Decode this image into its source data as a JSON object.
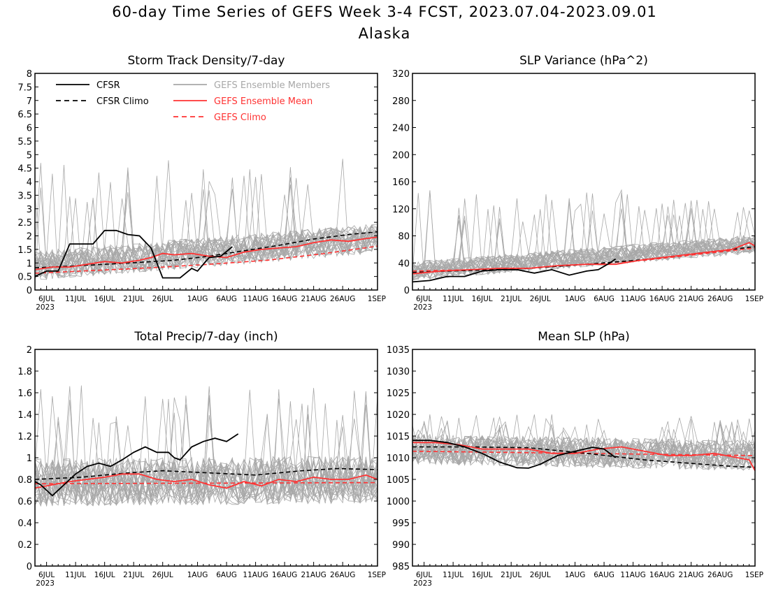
{
  "title": "60-day Time Series of GEFS Week 3-4 FCST, 2023.07.04-2023.09.01",
  "subtitle": "Alaska",
  "colors": {
    "cfsr": "#000000",
    "members": "#a8a8a8",
    "ens_mean": "#ff3333",
    "gefs_climo": "#ff3333"
  },
  "x_axis": {
    "tick_labels": [
      "6JUL",
      "11JUL",
      "16JUL",
      "21JUL",
      "26JUL",
      "1AUG",
      "6AUG",
      "11AUG",
      "16AUG",
      "21AUG",
      "26AUG",
      "1SEP"
    ],
    "tick_days": [
      2,
      7,
      12,
      17,
      22,
      28,
      33,
      38,
      43,
      48,
      53,
      59
    ],
    "year_label": "2023",
    "range_days": [
      0,
      59
    ]
  },
  "legend": {
    "placement": "top-left of first panel",
    "entries": [
      {
        "label": "CFSR",
        "color": "#000000",
        "style": "solid"
      },
      {
        "label": "CFSR Climo",
        "color": "#000000",
        "style": "dashed"
      },
      {
        "label": "GEFS Ensemble Members",
        "color": "#a8a8a8",
        "style": "solid"
      },
      {
        "label": "GEFS Ensemble Mean",
        "color": "#ff3333",
        "style": "solid"
      },
      {
        "label": "GEFS Climo",
        "color": "#ff3333",
        "style": "dashed"
      }
    ]
  },
  "chart_data": [
    {
      "type": "line",
      "title": "Storm Track Density/7-day",
      "ylim": [
        0,
        8
      ],
      "yticks": [
        0,
        0.5,
        1,
        1.5,
        2,
        2.5,
        3,
        3.5,
        4,
        4.5,
        5,
        5.5,
        6,
        6.5,
        7,
        7.5,
        8
      ],
      "ytick_labels": [
        "0",
        "0.5",
        "1",
        "1.5",
        "2",
        "2.5",
        "3",
        "3.5",
        "4",
        "4.5",
        "5",
        "5.5",
        "6",
        "6.5",
        "7",
        "7.5",
        "8"
      ],
      "series": [
        {
          "name": "CFSR",
          "x": [
            0,
            2,
            4,
            6,
            8,
            10,
            12,
            14,
            16,
            18,
            20,
            22,
            23,
            25,
            27,
            28,
            30,
            32,
            34
          ],
          "values": [
            0.5,
            0.7,
            0.7,
            1.7,
            1.7,
            1.7,
            2.2,
            2.2,
            2.05,
            2.0,
            1.55,
            0.45,
            0.45,
            0.45,
            0.8,
            0.7,
            1.2,
            1.25,
            1.6
          ]
        },
        {
          "name": "CFSR Climo",
          "x": [
            0,
            6,
            12,
            18,
            24,
            30,
            36,
            42,
            48,
            54,
            59
          ],
          "values": [
            0.82,
            0.88,
            0.95,
            1.02,
            1.1,
            1.25,
            1.45,
            1.65,
            1.88,
            2.05,
            2.15
          ]
        },
        {
          "name": "GEFS Ensemble Mean",
          "x": [
            0,
            3,
            6,
            9,
            12,
            15,
            18,
            20,
            22,
            24,
            27,
            30,
            33,
            36,
            39,
            42,
            45,
            48,
            51,
            54,
            57,
            59
          ],
          "values": [
            0.75,
            0.85,
            0.85,
            0.95,
            1.05,
            1.0,
            1.1,
            1.2,
            1.35,
            1.3,
            1.35,
            1.25,
            1.2,
            1.4,
            1.5,
            1.55,
            1.6,
            1.75,
            1.85,
            1.8,
            1.9,
            1.95
          ]
        },
        {
          "name": "GEFS Climo",
          "x": [
            0,
            10,
            20,
            30,
            40,
            50,
            59
          ],
          "values": [
            0.62,
            0.72,
            0.82,
            0.95,
            1.1,
            1.35,
            1.62
          ]
        }
      ],
      "members": {
        "count": 30,
        "center_start": 0.9,
        "center_end": 1.9,
        "spread": 0.55,
        "spike_max": 4.9
      }
    },
    {
      "type": "line",
      "title": "SLP Variance (hPa^2)",
      "ylim": [
        0,
        320
      ],
      "yticks": [
        0,
        40,
        80,
        120,
        160,
        200,
        240,
        280,
        320
      ],
      "ytick_labels": [
        "0",
        "40",
        "80",
        "120",
        "160",
        "200",
        "240",
        "280",
        "320"
      ],
      "series": [
        {
          "name": "CFSR",
          "x": [
            0,
            3,
            6,
            9,
            12,
            15,
            18,
            21,
            24,
            27,
            30,
            32,
            34,
            35
          ],
          "values": [
            12,
            14,
            20,
            20,
            28,
            30,
            30,
            25,
            30,
            22,
            28,
            30,
            40,
            46
          ]
        },
        {
          "name": "CFSR Climo",
          "x": [
            0,
            10,
            20,
            30,
            40,
            50,
            59
          ],
          "values": [
            26,
            29,
            32,
            38,
            45,
            55,
            64
          ]
        },
        {
          "name": "GEFS Ensemble Mean",
          "x": [
            0,
            5,
            10,
            15,
            20,
            25,
            30,
            35,
            40,
            45,
            50,
            55,
            58,
            59
          ],
          "values": [
            24,
            28,
            30,
            32,
            32,
            36,
            38,
            38,
            45,
            50,
            55,
            60,
            70,
            65
          ]
        },
        {
          "name": "GEFS Climo",
          "x": [
            0,
            20,
            40,
            59
          ],
          "values": [
            28,
            32,
            44,
            62
          ]
        }
      ],
      "members": {
        "count": 30,
        "center_start": 28,
        "center_end": 68,
        "spread": 14,
        "spike_max": 150
      }
    },
    {
      "type": "line",
      "title": "Total Precip/7-day (inch)",
      "ylim": [
        0,
        2
      ],
      "yticks": [
        0,
        0.2,
        0.4,
        0.6,
        0.8,
        1,
        1.2,
        1.4,
        1.6,
        1.8,
        2
      ],
      "ytick_labels": [
        "0",
        "0.2",
        "0.4",
        "0.6",
        "0.8",
        "1",
        "1.2",
        "1.4",
        "1.6",
        "1.8",
        "2"
      ],
      "series": [
        {
          "name": "CFSR",
          "x": [
            0,
            1,
            3,
            5,
            7,
            9,
            11,
            13,
            15,
            17,
            19,
            21,
            23,
            24,
            25,
            27,
            29,
            31,
            33,
            35
          ],
          "values": [
            0.78,
            0.75,
            0.65,
            0.75,
            0.85,
            0.92,
            0.95,
            0.92,
            0.98,
            1.05,
            1.1,
            1.05,
            1.05,
            1.0,
            0.98,
            1.1,
            1.15,
            1.18,
            1.15,
            1.22
          ]
        },
        {
          "name": "CFSR Climo",
          "x": [
            0,
            8,
            16,
            22,
            30,
            38,
            46,
            52,
            59
          ],
          "values": [
            0.8,
            0.82,
            0.86,
            0.88,
            0.86,
            0.84,
            0.88,
            0.9,
            0.89
          ]
        },
        {
          "name": "GEFS Ensemble Mean",
          "x": [
            0,
            3,
            6,
            9,
            12,
            15,
            18,
            21,
            24,
            27,
            30,
            33,
            36,
            39,
            42,
            45,
            48,
            51,
            54,
            57,
            59
          ],
          "values": [
            0.72,
            0.75,
            0.78,
            0.8,
            0.82,
            0.85,
            0.85,
            0.8,
            0.78,
            0.8,
            0.75,
            0.72,
            0.78,
            0.74,
            0.8,
            0.78,
            0.82,
            0.8,
            0.8,
            0.84,
            0.8
          ]
        },
        {
          "name": "GEFS Climo",
          "x": [
            0,
            59
          ],
          "values": [
            0.76,
            0.77
          ]
        }
      ],
      "members": {
        "count": 30,
        "center_start": 0.77,
        "center_end": 0.8,
        "spread": 0.22,
        "spike_max": 1.67
      }
    },
    {
      "type": "line",
      "title": "Mean SLP (hPa)",
      "ylim": [
        985,
        1035
      ],
      "yticks": [
        985,
        990,
        995,
        1000,
        1005,
        1010,
        1015,
        1020,
        1025,
        1030,
        1035
      ],
      "ytick_labels": [
        "985",
        "990",
        "995",
        "1000",
        "1005",
        "1010",
        "1015",
        "1020",
        "1025",
        "1030",
        "1035"
      ],
      "series": [
        {
          "name": "CFSR",
          "x": [
            0,
            3,
            6,
            9,
            12,
            15,
            18,
            20,
            22,
            25,
            28,
            31,
            33,
            35
          ],
          "values": [
            1014,
            1014,
            1013.5,
            1012.5,
            1011,
            1009,
            1007.7,
            1007.6,
            1008.5,
            1010.5,
            1011.5,
            1012.4,
            1012.0,
            1010
          ]
        },
        {
          "name": "CFSR Climo",
          "x": [
            0,
            10,
            20,
            30,
            40,
            50,
            55,
            59
          ],
          "values": [
            1012.5,
            1012.5,
            1012.3,
            1011,
            1009.5,
            1008.5,
            1008,
            1007.8
          ]
        },
        {
          "name": "GEFS Ensemble Mean",
          "x": [
            0,
            4,
            8,
            12,
            16,
            20,
            24,
            28,
            32,
            36,
            40,
            44,
            48,
            52,
            56,
            58,
            59
          ],
          "values": [
            1013.5,
            1013.5,
            1013,
            1012,
            1012,
            1012,
            1011,
            1011,
            1012,
            1012.5,
            1011.5,
            1010.5,
            1010.5,
            1011,
            1010,
            1009.5,
            1007
          ]
        },
        {
          "name": "GEFS Climo",
          "x": [
            0,
            59
          ],
          "values": [
            1011.5,
            1010.5
          ]
        }
      ],
      "members": {
        "count": 30,
        "center_start": 1012,
        "center_end": 1010.5,
        "spread": 3.5,
        "spike_max": 1020
      }
    }
  ]
}
